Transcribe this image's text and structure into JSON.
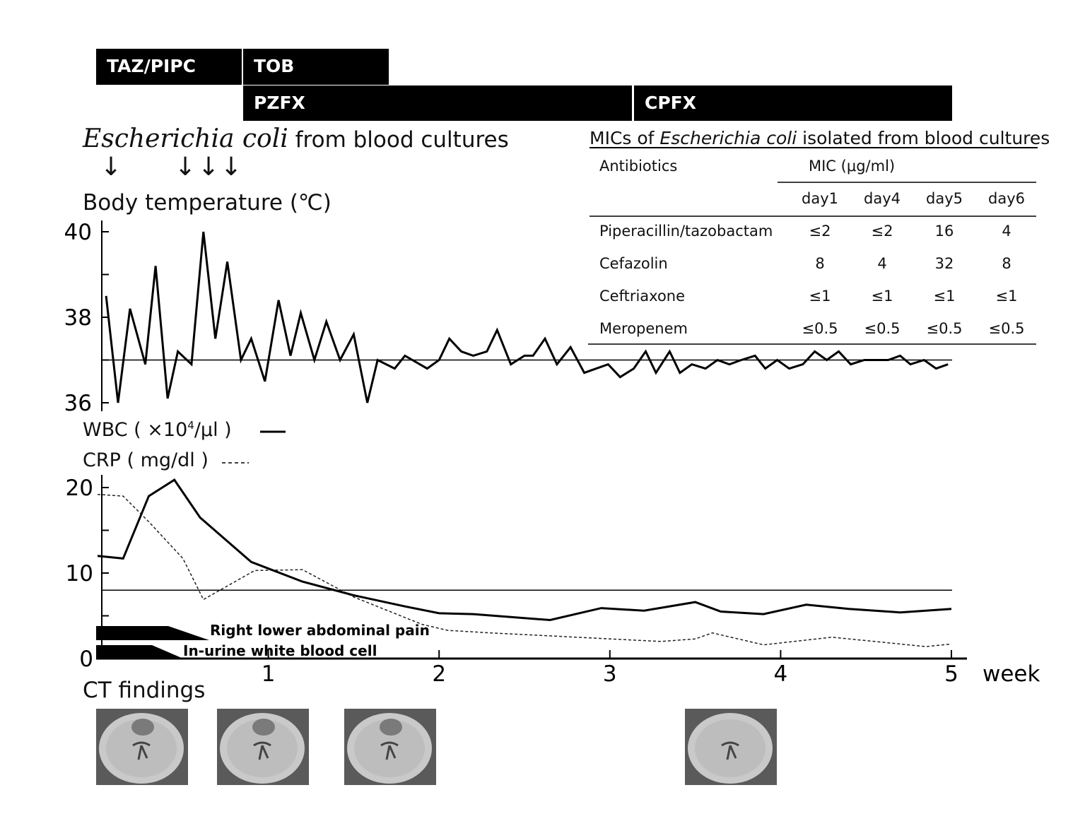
{
  "therapy": {
    "taz_pipc": "TAZ/PIPC",
    "tob": "TOB",
    "pzfx": "PZFX",
    "cpfx": "CPFX"
  },
  "culture": {
    "organism": "Escherichia coli",
    "suffix": " from blood cultures",
    "arrow_glyph": "↓"
  },
  "mic_table": {
    "title_prefix": "MICs of ",
    "title_organism": "Escherichia coli",
    "title_suffix": "  isolated from blood cultures",
    "col_antibiotics": "Antibiotics",
    "col_mic": "MIC  (μg/ml)",
    "days": [
      "day1",
      "day4",
      "day5",
      "day6"
    ],
    "rows": [
      {
        "drug": "Piperacillin/tazobactam",
        "values": [
          "≤2",
          "≤2",
          "16",
          "4"
        ]
      },
      {
        "drug": "Cefazolin",
        "values": [
          "8",
          "4",
          "32",
          "8"
        ]
      },
      {
        "drug": "Ceftriaxone",
        "values": [
          "≤1",
          "≤1",
          "≤1",
          "≤1"
        ]
      },
      {
        "drug": "Meropenem",
        "values": [
          "≤0.5",
          "≤0.5",
          "≤0.5",
          "≤0.5"
        ]
      }
    ]
  },
  "temp_label": "Body temperature (℃)",
  "wbc_label_prefix": "WBC ( ×10",
  "wbc_label_sup": "4",
  "wbc_label_suffix": "/μl )",
  "crp_label": "CRP ( mg/dl )",
  "symptoms": {
    "pain": "Right lower abdominal pain",
    "urine": "In-urine white blood cell"
  },
  "ct_label": "CT findings",
  "ct_images": [
    "ct-scan-1",
    "ct-scan-2",
    "ct-scan-3",
    "ct-scan-4"
  ],
  "chart_data": [
    {
      "type": "line",
      "title": "Body temperature (℃)",
      "ylim": [
        36,
        40
      ],
      "yticks": [
        "36",
        "38",
        "40"
      ],
      "reference_line": 37,
      "series": [
        {
          "x": [
            0.05,
            0.12,
            0.19,
            0.28,
            0.34,
            0.41,
            0.47,
            0.55,
            0.62,
            0.69,
            0.76,
            0.84,
            0.9,
            0.98,
            1.06,
            1.13,
            1.19,
            1.27,
            1.34,
            1.42,
            1.5,
            1.58,
            1.64,
            1.74,
            1.8,
            1.93,
            2.0,
            2.06,
            2.13,
            2.2,
            2.28,
            2.34,
            2.42,
            2.5,
            2.55,
            2.62,
            2.69,
            2.77,
            2.85,
            2.92,
            2.99,
            3.06,
            3.14,
            3.21,
            3.27,
            3.35,
            3.41,
            3.48,
            3.56,
            3.63,
            3.7,
            3.77,
            3.85,
            3.91,
            3.98,
            4.05,
            4.13,
            4.2,
            4.27,
            4.34,
            4.41,
            4.49,
            4.56,
            4.63,
            4.7,
            4.76,
            4.84,
            4.91,
            4.98
          ],
          "values": [
            38.5,
            36.0,
            38.2,
            36.9,
            39.2,
            36.1,
            37.2,
            36.9,
            40.0,
            37.5,
            39.3,
            37.0,
            37.5,
            36.5,
            38.4,
            37.1,
            38.1,
            37.0,
            37.9,
            37.0,
            37.6,
            36.0,
            37.0,
            36.8,
            37.1,
            36.8,
            37.0,
            37.5,
            37.2,
            37.1,
            37.2,
            37.7,
            36.9,
            37.1,
            37.1,
            37.5,
            36.9,
            37.3,
            36.7,
            36.8,
            36.9,
            36.6,
            36.8,
            37.2,
            36.7,
            37.2,
            36.7,
            36.9,
            36.8,
            37.0,
            36.9,
            37.0,
            37.1,
            36.8,
            37.0,
            36.8,
            36.9,
            37.2,
            37.0,
            37.2,
            36.9,
            37.0,
            37.0,
            37.0,
            37.1,
            36.9,
            37.0,
            36.8,
            36.9
          ]
        }
      ]
    },
    {
      "type": "line",
      "ylim": [
        0,
        20
      ],
      "yticks": [
        "0",
        "10",
        "20"
      ],
      "xlabel": "week",
      "xticks": [
        "1",
        "2",
        "3",
        "4",
        "5"
      ],
      "xlim": [
        0,
        5
      ],
      "reference_line": 8,
      "series": [
        {
          "name": "WBC ( ×10⁴/μl )",
          "style": "solid",
          "x": [
            0.0,
            0.15,
            0.3,
            0.45,
            0.6,
            0.9,
            1.2,
            1.5,
            1.8,
            2.0,
            2.2,
            2.65,
            2.95,
            3.2,
            3.5,
            3.65,
            3.9,
            4.15,
            4.4,
            4.7,
            5.0
          ],
          "values": [
            12.0,
            11.7,
            19.0,
            20.9,
            16.5,
            11.3,
            9.0,
            7.4,
            6.1,
            5.3,
            5.2,
            4.5,
            5.9,
            5.6,
            6.6,
            5.5,
            5.2,
            6.3,
            5.8,
            5.4,
            5.8
          ]
        },
        {
          "name": "CRP ( mg/dl )",
          "style": "dashed",
          "x": [
            0.0,
            0.15,
            0.3,
            0.5,
            0.62,
            0.92,
            1.2,
            1.5,
            1.9,
            2.05,
            2.3,
            2.7,
            3.0,
            3.3,
            3.5,
            3.6,
            3.9,
            4.3,
            4.6,
            4.85,
            5.0
          ],
          "values": [
            19.2,
            19.0,
            16.0,
            11.7,
            6.9,
            10.3,
            10.4,
            7.2,
            4.0,
            3.3,
            3.0,
            2.6,
            2.3,
            2.0,
            2.3,
            3.0,
            1.6,
            2.5,
            1.9,
            1.4,
            1.7
          ]
        }
      ]
    }
  ]
}
